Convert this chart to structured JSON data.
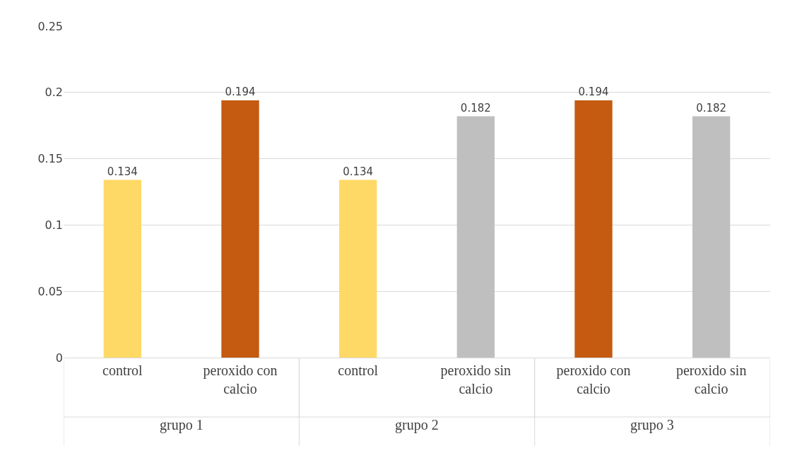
{
  "chart_data": {
    "type": "bar",
    "categories": [
      "control",
      "peroxido con calcio",
      "control",
      "peroxido sin calcio",
      "peroxido con calcio",
      "peroxido sin calcio"
    ],
    "values": [
      0.134,
      0.194,
      0.134,
      0.182,
      0.194,
      0.182
    ],
    "colors": [
      "#ffd966",
      "#c55a11",
      "#ffd966",
      "#bfbfbf",
      "#c55a11",
      "#bfbfbf"
    ],
    "ylim": [
      0,
      0.25
    ],
    "yticks": [
      0,
      0.05,
      0.1,
      0.15,
      0.2,
      0.25
    ],
    "grid": "y",
    "data_labels": true,
    "annotations": [
      "grupo 1",
      "grupo 2",
      "grupo 3"
    ]
  }
}
